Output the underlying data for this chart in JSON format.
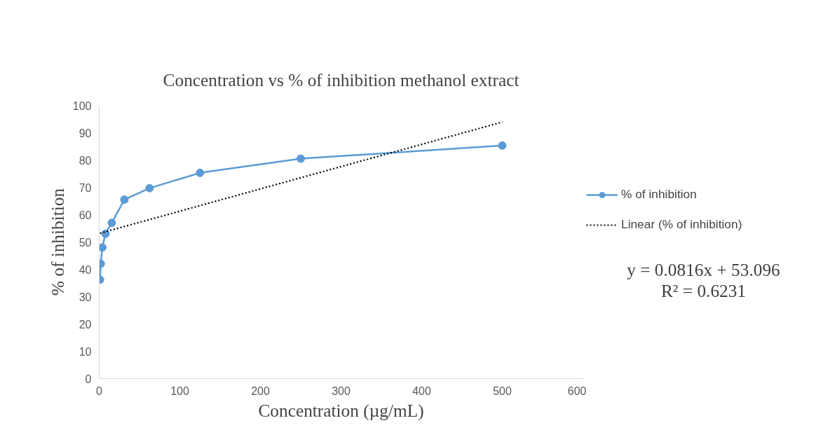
{
  "chart_data": {
    "type": "line",
    "title": "Concentration vs % of inhibition methanol extract",
    "xlabel": "Concentration (µg/mL)",
    "ylabel": "% of inhibition",
    "x": [
      0.98,
      1.95,
      3.9,
      7.8,
      15.6,
      31.25,
      62.5,
      125,
      250,
      500
    ],
    "series": [
      {
        "name": "% of inhibition",
        "color": "#5b9bd5",
        "values": [
          36.2,
          42,
          48,
          53,
          57,
          65.5,
          69.7,
          75.3,
          80.5,
          85.3
        ],
        "marker": "circle",
        "line_style": "solid"
      },
      {
        "name": "Linear (% of inhibition)",
        "color": "#000000",
        "x": [
          0.98,
          500
        ],
        "values": [
          53.2,
          93.9
        ],
        "marker": "none",
        "line_style": "dotted"
      }
    ],
    "xlim": [
      0,
      600
    ],
    "xticks": [
      0,
      100,
      200,
      300,
      400,
      500,
      600
    ],
    "ylim": [
      0,
      100
    ],
    "yticks": [
      0,
      10,
      20,
      30,
      40,
      50,
      60,
      70,
      80,
      90,
      100
    ],
    "grid": false,
    "legend": "right",
    "annotations": [
      "y = 0.0816x + 53.096",
      "R² = 0.6231"
    ]
  }
}
